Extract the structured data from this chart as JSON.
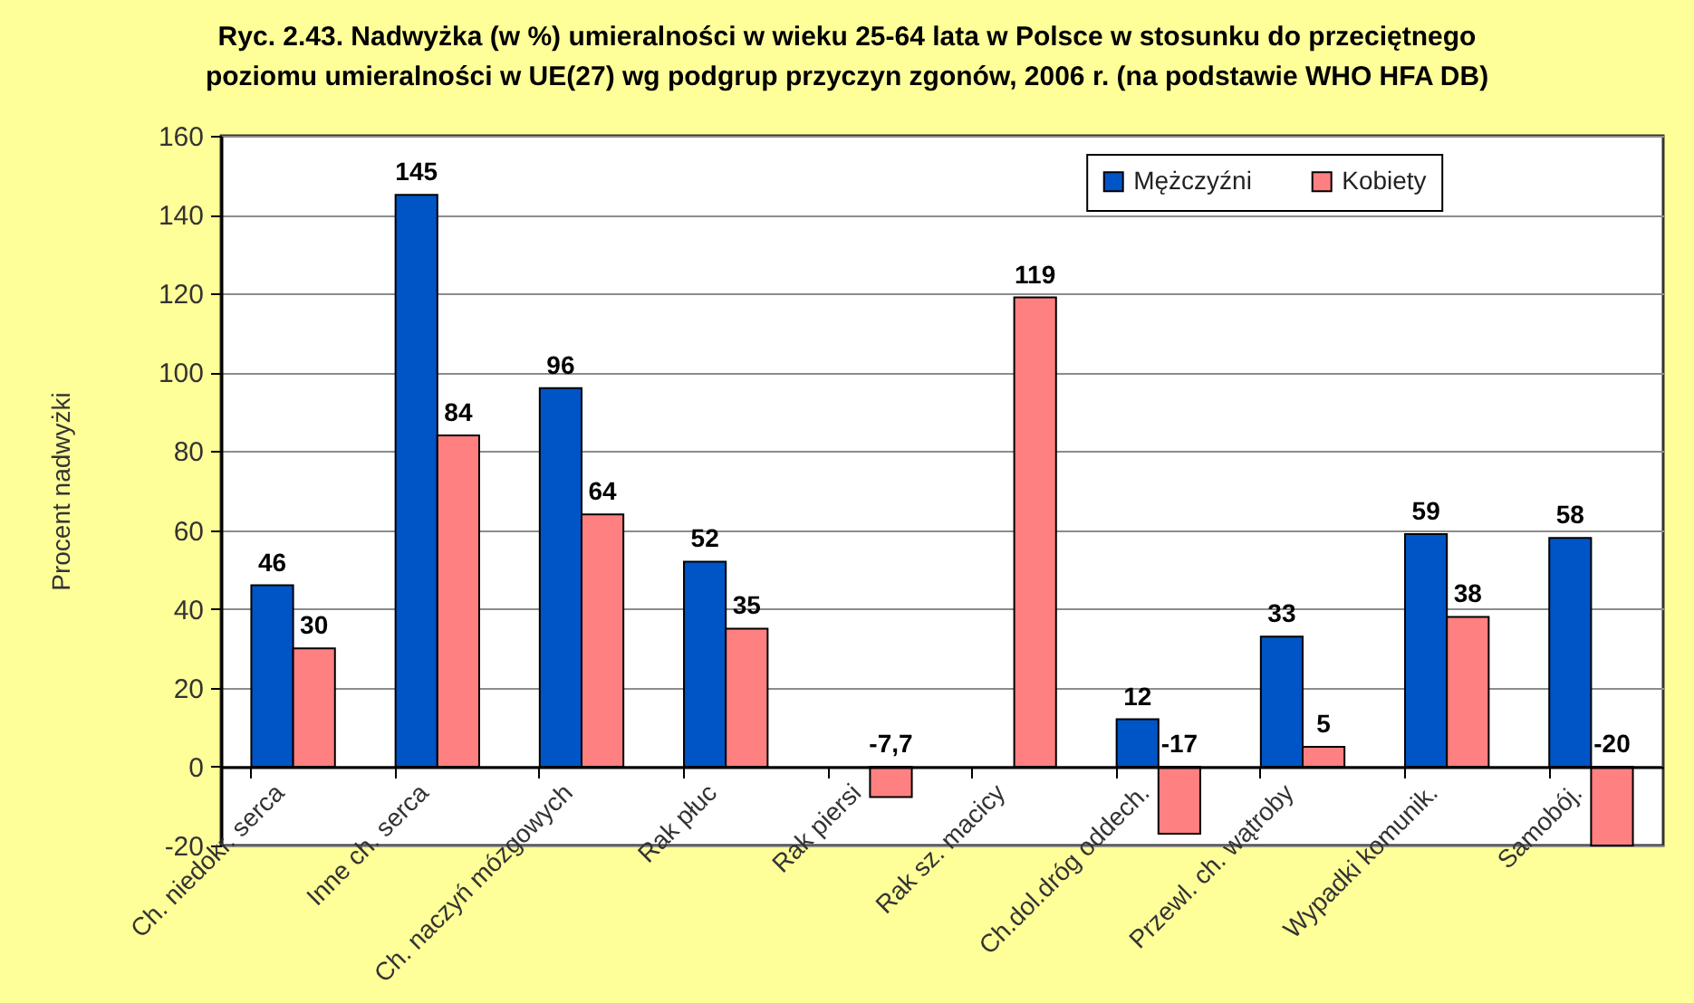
{
  "chart_data": {
    "type": "bar",
    "title": "Ryc. 2.43. Nadwyżka (w %) umieralności w wieku 25-64 lata w Polsce w stosunku do przeciętnego\npoziomu umieralności w UE(27) wg podgrup przyczyn zgonów, 2006 r.  (na podstawie WHO HFA DB)",
    "ylabel": "Procent nadwyżki",
    "categories": [
      "Ch. niedokr. serca",
      "Inne ch. serca",
      "Ch. naczyń mózgowych",
      "Rak płuc",
      "Rak piersi",
      "Rak sz. macicy",
      "Ch.dol.dróg oddech.",
      "Przewl. ch. wątroby",
      "Wypadki komunik.",
      "Samobój."
    ],
    "series": [
      {
        "name": "Mężczyźni",
        "color": "#0055c6",
        "values": [
          46,
          145,
          96,
          52,
          null,
          null,
          12,
          33,
          59,
          58
        ],
        "value_labels": [
          "46",
          "145",
          "96",
          "52",
          null,
          null,
          "12",
          "33",
          "59",
          "58"
        ]
      },
      {
        "name": "Kobiety",
        "color": "#ff8080",
        "values": [
          30,
          84,
          64,
          35,
          -7.7,
          119,
          -17,
          5,
          38,
          -20
        ],
        "value_labels": [
          "30",
          "84",
          "64",
          "35",
          "-7,7",
          "119",
          "-17",
          "5",
          "38",
          "-20"
        ]
      }
    ],
    "ylim": [
      -20,
      160
    ],
    "yticks": [
      -20,
      0,
      20,
      40,
      60,
      80,
      100,
      120,
      140,
      160
    ],
    "grid": "y",
    "legend": "top right"
  }
}
